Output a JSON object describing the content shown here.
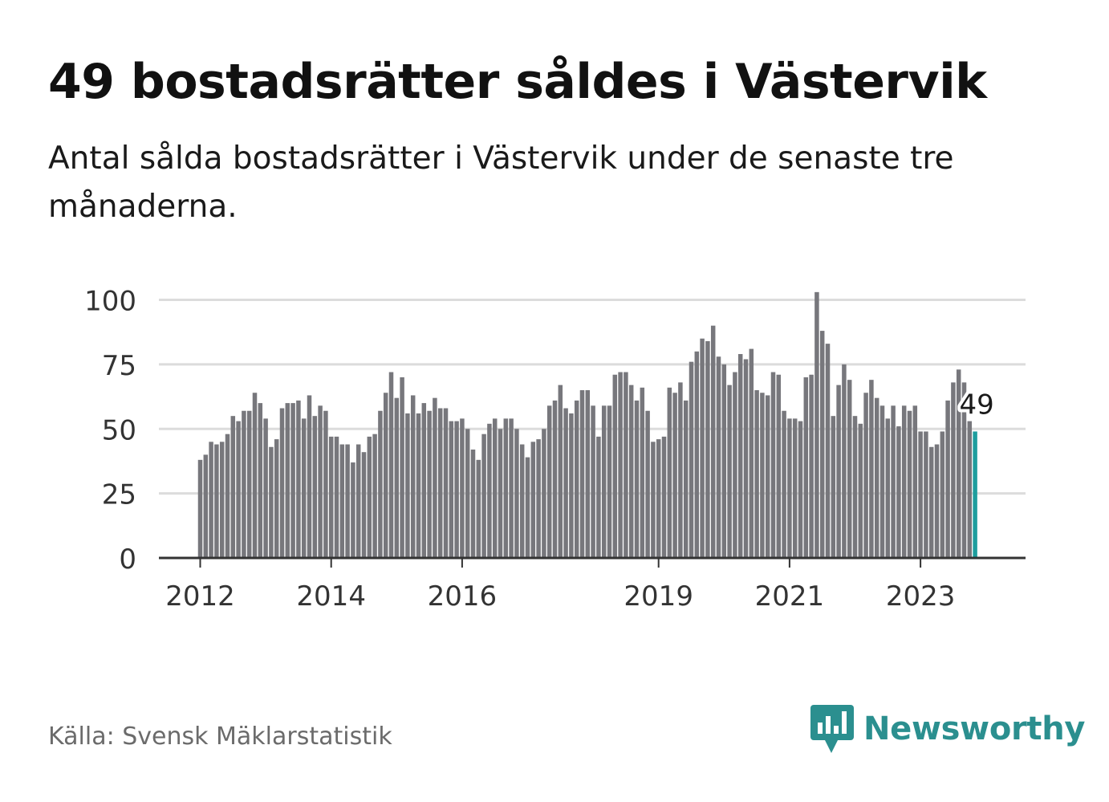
{
  "title": "49 bostadsrätter såldes i Västervik",
  "subtitle": "Antal sålda bostadsrätter i Västervik under de senaste tre månaderna.",
  "source": "Källa: Svensk Mäklarstatistik",
  "brand": "Newsworthy",
  "colors": {
    "bar": "#77777c",
    "highlight": "#1e9e9e",
    "grid": "#dcdcdc",
    "axis": "#333333",
    "brand": "#2b8f8f"
  },
  "chart_data": {
    "type": "bar",
    "title": "49 bostadsrätter såldes i Västervik",
    "xlabel": "",
    "ylabel": "",
    "ylim": [
      0,
      105
    ],
    "yticks": [
      0,
      25,
      50,
      75,
      100
    ],
    "xtick_labels": [
      {
        "label": "2012",
        "index": 0
      },
      {
        "label": "2014",
        "index": 24
      },
      {
        "label": "2016",
        "index": 48
      },
      {
        "label": "2019",
        "index": 84
      },
      {
        "label": "2021",
        "index": 108
      },
      {
        "label": "2023",
        "index": 132
      }
    ],
    "grid": true,
    "annotation": {
      "index": 142,
      "label": "49"
    },
    "values": [
      38,
      40,
      45,
      44,
      45,
      48,
      55,
      53,
      57,
      57,
      64,
      60,
      54,
      43,
      46,
      58,
      60,
      60,
      61,
      54,
      63,
      55,
      59,
      57,
      47,
      47,
      44,
      44,
      37,
      44,
      41,
      47,
      48,
      57,
      64,
      72,
      62,
      70,
      56,
      63,
      56,
      60,
      57,
      62,
      58,
      58,
      53,
      53,
      54,
      50,
      42,
      38,
      48,
      52,
      54,
      50,
      54,
      54,
      50,
      44,
      39,
      45,
      46,
      50,
      59,
      61,
      67,
      58,
      56,
      61,
      65,
      65,
      59,
      47,
      59,
      59,
      71,
      72,
      72,
      67,
      61,
      66,
      57,
      45,
      46,
      47,
      66,
      64,
      68,
      61,
      76,
      80,
      85,
      84,
      90,
      78,
      75,
      67,
      72,
      79,
      77,
      81,
      65,
      64,
      63,
      72,
      71,
      57,
      54,
      54,
      53,
      70,
      71,
      103,
      88,
      83,
      55,
      67,
      75,
      69,
      55,
      52,
      64,
      69,
      62,
      59,
      54,
      59,
      51,
      59,
      57,
      59,
      49,
      49,
      43,
      44,
      49,
      61,
      68,
      73,
      68,
      53,
      49
    ]
  }
}
